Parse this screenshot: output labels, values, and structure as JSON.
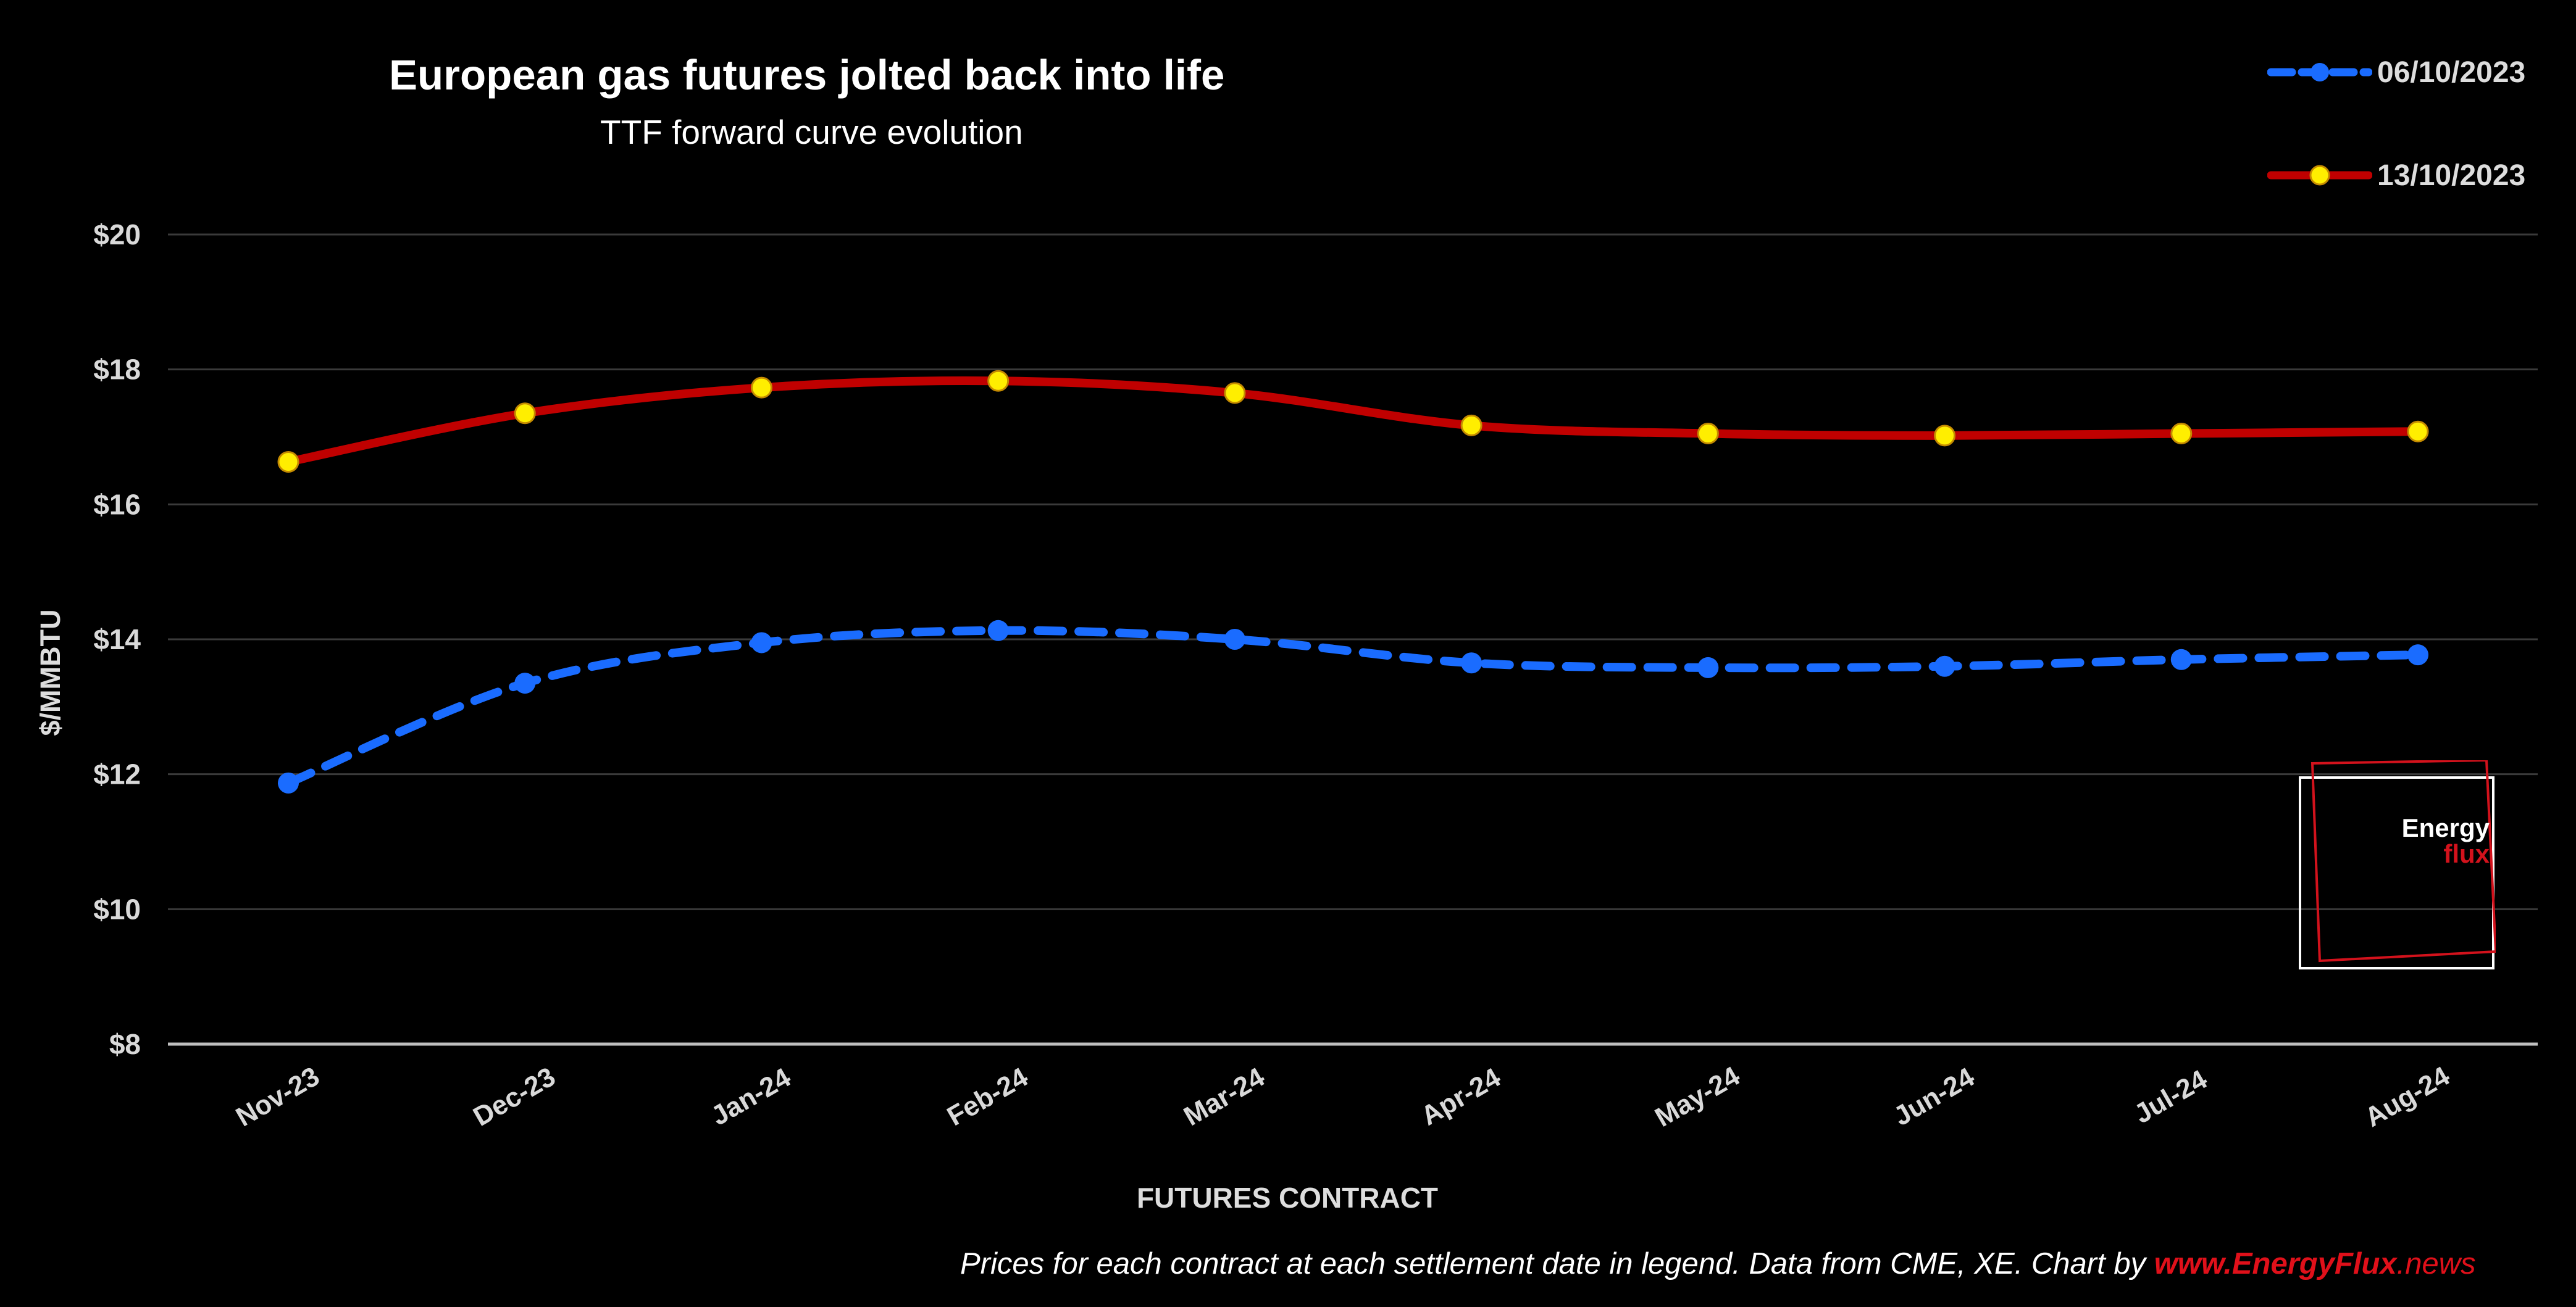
{
  "chart_data": {
    "type": "line",
    "title": "European gas futures jolted back into life",
    "subtitle": "TTF forward curve evolution",
    "xlabel": "FUTURES CONTRACT",
    "ylabel": "$/MMBTU",
    "categories": [
      "Nov-23",
      "Dec-23",
      "Jan-24",
      "Feb-24",
      "Mar-24",
      "Apr-24",
      "May-24",
      "Jun-24",
      "Jul-24",
      "Aug-24"
    ],
    "yticks": [
      "$20",
      "$18",
      "$16",
      "$14",
      "$12",
      "$10",
      "$8"
    ],
    "ylim": [
      8,
      20
    ],
    "grid": true,
    "legend_position": "top-right",
    "series": [
      {
        "name": "06/10/2023",
        "color": "#1a6cff",
        "style": "dashed",
        "marker": "blue-dot",
        "values": [
          11.87,
          13.35,
          13.95,
          14.13,
          14.0,
          13.65,
          13.58,
          13.6,
          13.7,
          13.77
        ]
      },
      {
        "name": "13/10/2023",
        "color": "#c00000",
        "style": "solid",
        "marker": "yellow-dot",
        "values": [
          16.63,
          17.35,
          17.73,
          17.83,
          17.65,
          17.17,
          17.05,
          17.02,
          17.05,
          17.08
        ]
      }
    ]
  },
  "footnote": {
    "text": "Prices for each contract at each settlement date in legend. Data from CME, XE. Chart by ",
    "site_prefix": "www.EnergyFlux",
    "site_suffix": ".news"
  },
  "logo": {
    "line1": "Energy",
    "line2": "flux"
  }
}
